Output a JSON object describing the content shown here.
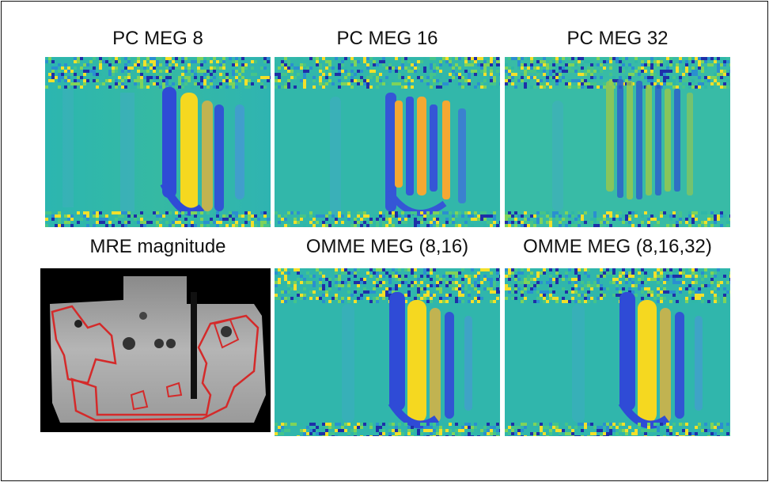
{
  "panels": [
    {
      "id": "pc8",
      "title": "PC MEG 8",
      "kind": "phase",
      "colormap": "parula"
    },
    {
      "id": "pc16",
      "title": "PC MEG 16",
      "kind": "phase",
      "colormap": "parula"
    },
    {
      "id": "pc32",
      "title": "PC MEG 32",
      "kind": "phase",
      "colormap": "parula"
    },
    {
      "id": "mag",
      "title": "MRE magnitude",
      "kind": "magnitude",
      "outline_color": "#d42a2a"
    },
    {
      "id": "omme16",
      "title": "OMME MEG (8,16)",
      "kind": "phase",
      "colormap": "parula"
    },
    {
      "id": "omme32",
      "title": "OMME MEG (8,16,32)",
      "kind": "phase",
      "colormap": "parula"
    }
  ],
  "colors": {
    "parula_background": "#2fb7a8",
    "parula_dark": "#2f4bd6",
    "parula_bright": "#f5d820",
    "noise_yellow": "#f3e02a",
    "noise_blue": "#1e2fa8",
    "outline_red": "#d42a2a"
  }
}
